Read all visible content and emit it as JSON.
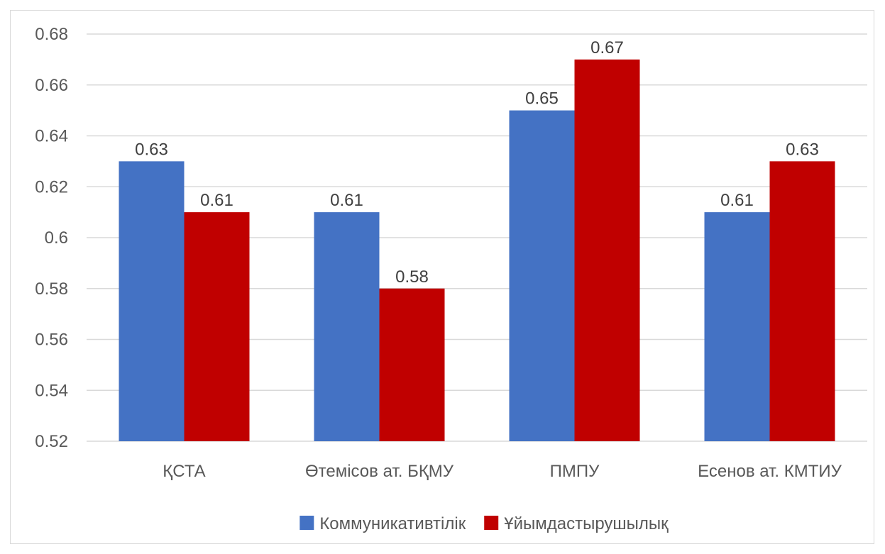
{
  "chart_data": {
    "type": "bar",
    "categories": [
      "ҚСТА",
      "Өтемісов ат. БҚМУ",
      "ПМПУ",
      "Есенов ат. КМТИУ"
    ],
    "series": [
      {
        "name": "Коммуникативтілік",
        "values": [
          0.63,
          0.61,
          0.65,
          0.61
        ],
        "color": "#4472C4"
      },
      {
        "name": "Ұйымдастырушылық",
        "values": [
          0.61,
          0.58,
          0.67,
          0.63
        ],
        "color": "#C00000"
      }
    ],
    "yticks": [
      "0.52",
      "0.54",
      "0.56",
      "0.58",
      "0.6",
      "0.62",
      "0.64",
      "0.66",
      "0.68"
    ],
    "ylim": [
      0.52,
      0.68
    ],
    "grid": true,
    "legend_position": "bottom",
    "gridline_color": "#d9d9d9",
    "title": "",
    "xlabel": "",
    "ylabel": ""
  }
}
